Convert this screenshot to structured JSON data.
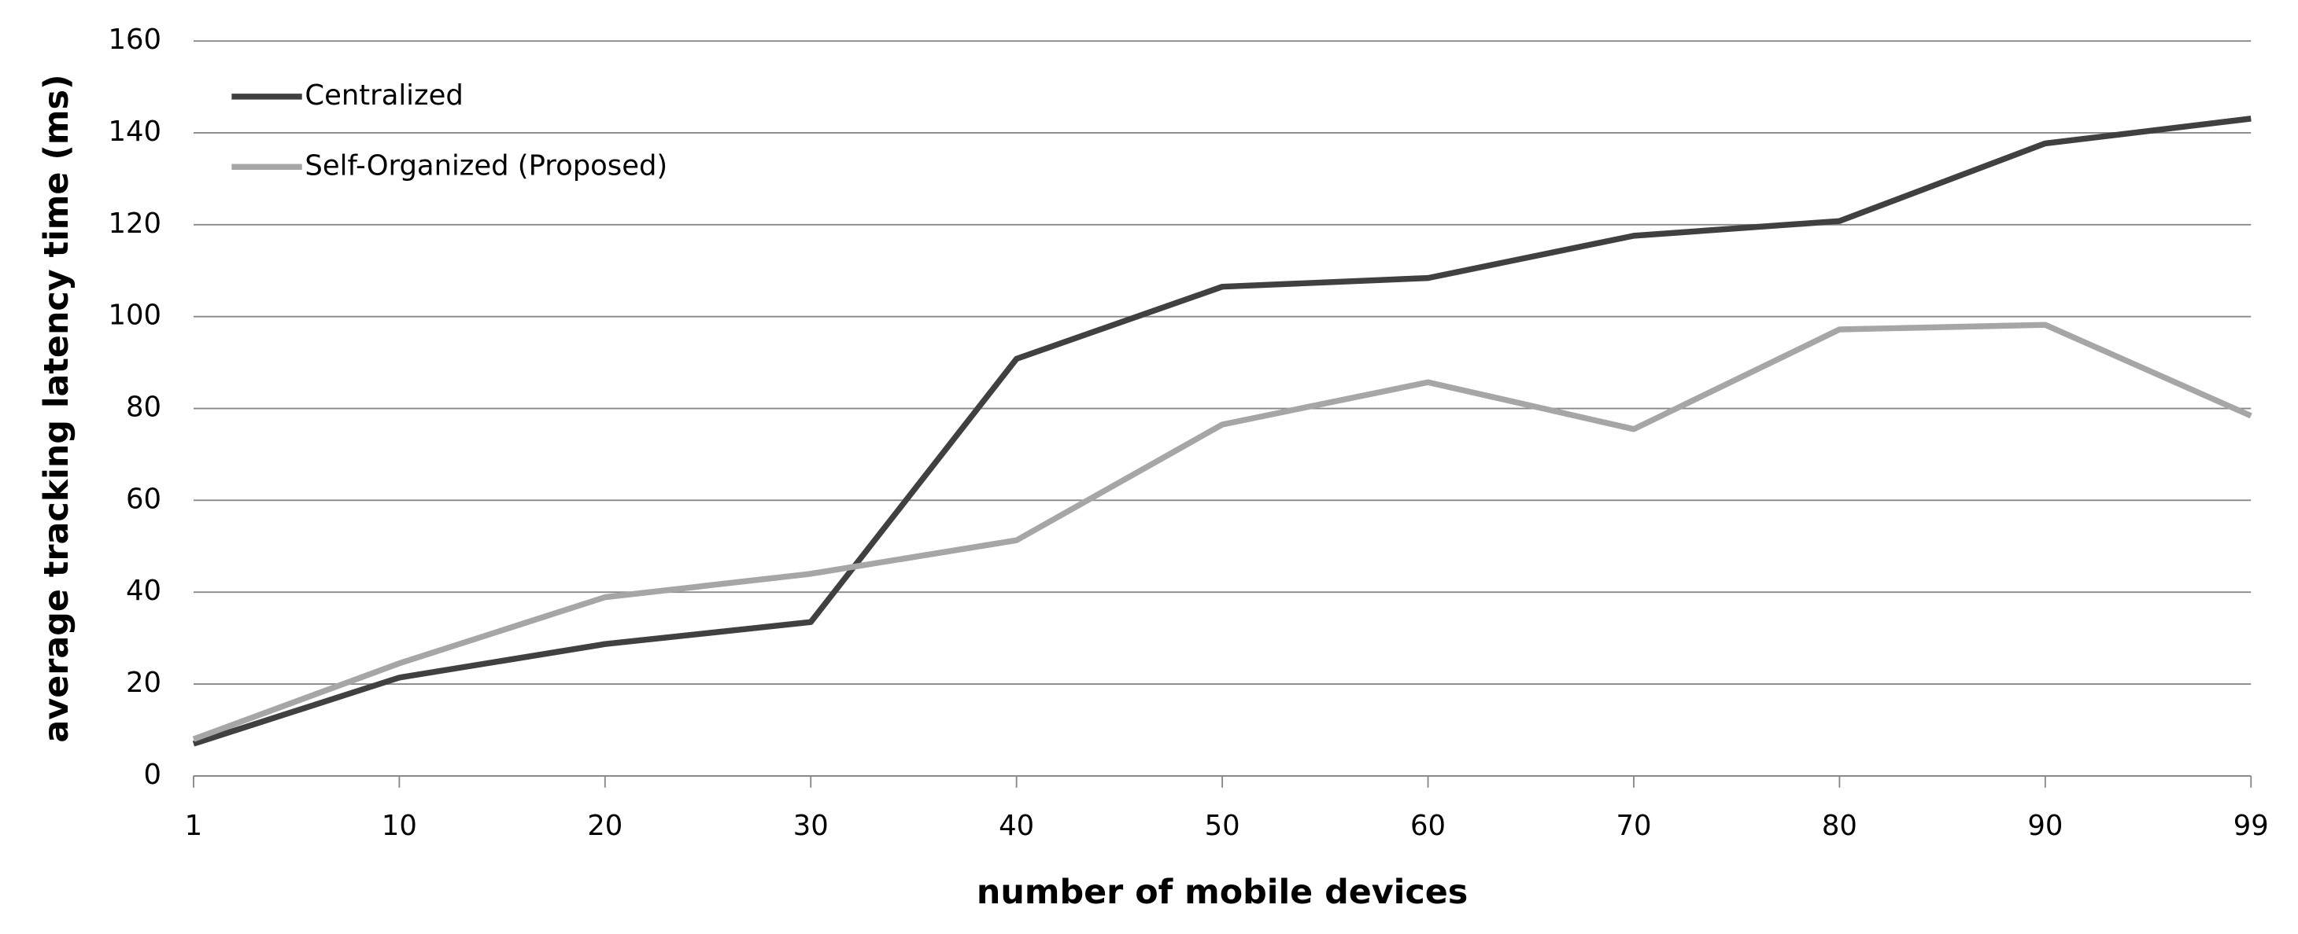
{
  "chart_data": {
    "type": "line",
    "x_label": "number of mobile devices",
    "y_label": "average tracking latency time (ms)",
    "categories": [
      "1",
      "10",
      "20",
      "30",
      "40",
      "50",
      "60",
      "70",
      "80",
      "90",
      "99"
    ],
    "series": [
      {
        "name": "Centralized",
        "color": "#404040",
        "values": [
          7,
          21.4,
          28.7,
          33.5,
          90.8,
          106.5,
          108.4,
          117.6,
          120.8,
          137.7,
          143.1
        ]
      },
      {
        "name": "Self-Organized (Proposed)",
        "color": "#a6a6a6",
        "values": [
          8,
          24.5,
          38.9,
          44,
          51.3,
          76.5,
          85.7,
          75.5,
          97.2,
          98.2,
          78.4
        ]
      }
    ],
    "ylim": [
      0,
      160
    ],
    "yticks": [
      0,
      20,
      40,
      60,
      80,
      100,
      120,
      140,
      160
    ],
    "grid": true,
    "legend": "top-left"
  }
}
